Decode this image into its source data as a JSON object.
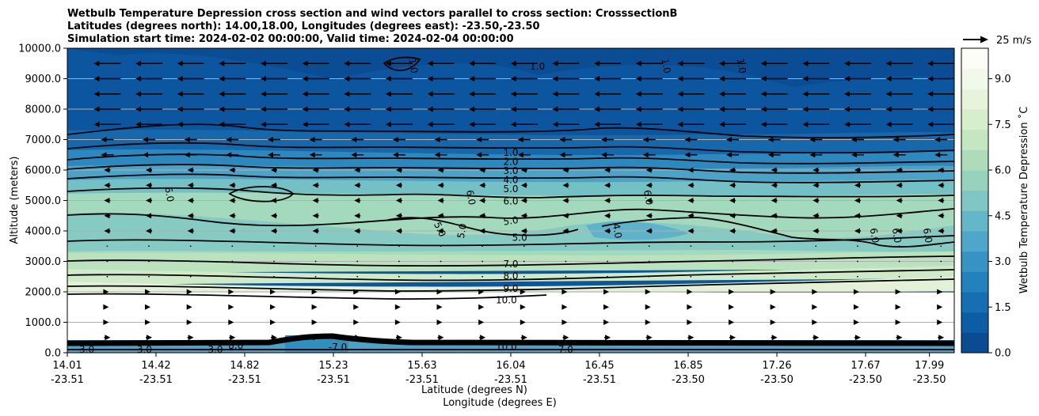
{
  "chart_data": {
    "type": "contourf",
    "title_lines": [
      "Wetbulb Temperature Depression cross section and wind vectors parallel to cross section: CrosssectionB",
      "Latitudes (degrees north): 14.00,18.00, Longitudes (degrees east): -23.50,-23.50",
      "Simulation start time: 2024-02-02 00:00:00, Valid time: 2024-02-04 00:00:00"
    ],
    "xlabel_lat": "Latitude (degrees N)",
    "xlabel_lon": "Longitude (degrees E)",
    "ylabel": "Altitude (meters)",
    "colorbar_label": "Wetbulb Temperature Depression ˚C",
    "quiver_key_label": "25 m/s",
    "xlim": [
      0,
      10
    ],
    "ylim": [
      0,
      10000
    ],
    "x_ticks": [
      {
        "pos": 0.0,
        "lat": "14.01",
        "lon": "-23.51"
      },
      {
        "pos": 1.0,
        "lat": "14.42",
        "lon": "-23.51"
      },
      {
        "pos": 2.0,
        "lat": "14.82",
        "lon": "-23.51"
      },
      {
        "pos": 3.0,
        "lat": "15.23",
        "lon": "-23.51"
      },
      {
        "pos": 4.0,
        "lat": "15.63",
        "lon": "-23.51"
      },
      {
        "pos": 5.0,
        "lat": "16.04",
        "lon": "-23.51"
      },
      {
        "pos": 6.0,
        "lat": "16.45",
        "lon": "-23.51"
      },
      {
        "pos": 7.0,
        "lat": "16.85",
        "lon": "-23.50"
      },
      {
        "pos": 8.0,
        "lat": "17.26",
        "lon": "-23.50"
      },
      {
        "pos": 9.0,
        "lat": "17.67",
        "lon": "-23.50"
      },
      {
        "pos": 9.72,
        "lat": "17.99",
        "lon": "-23.50"
      }
    ],
    "y_ticks": [
      "0.0",
      "1000.0",
      "2000.0",
      "3000.0",
      "4000.0",
      "5000.0",
      "6000.0",
      "7000.0",
      "8000.0",
      "9000.0",
      "10000.0"
    ],
    "y_tick_values": [
      0,
      1000,
      2000,
      3000,
      4000,
      5000,
      6000,
      7000,
      8000,
      9000,
      10000
    ],
    "colorbar_ticks": [
      "0.0",
      "1.5",
      "3.0",
      "4.5",
      "6.0",
      "7.5",
      "9.0"
    ],
    "colorbar_tick_values": [
      0,
      1.5,
      3,
      4.5,
      6,
      7.5,
      9
    ],
    "colorbar_range": [
      0,
      10
    ],
    "colorscale": [
      "#0a4c92",
      "#0c5da3",
      "#156fb1",
      "#2381bb",
      "#3793c4",
      "#4ea6c8",
      "#64b7c9",
      "#7ec7c4",
      "#97d3bc",
      "#aedcba",
      "#c4e6c0",
      "#d7eecd",
      "#e6f4dc",
      "#f1f9ea",
      "#fbfdf6"
    ],
    "contour_labels": [
      {
        "text": "1.0",
        "x": 5.0,
        "y": 6570,
        "rot": 0
      },
      {
        "text": "2.0",
        "x": 5.0,
        "y": 6270,
        "rot": 0
      },
      {
        "text": "3.0",
        "x": 5.0,
        "y": 5980,
        "rot": 0
      },
      {
        "text": "4.0",
        "x": 5.0,
        "y": 5680,
        "rot": 0
      },
      {
        "text": "5.0",
        "x": 5.0,
        "y": 5380,
        "rot": 0
      },
      {
        "text": "6.0",
        "x": 5.0,
        "y": 4980,
        "rot": 0
      },
      {
        "text": "5.0",
        "x": 5.0,
        "y": 4330,
        "rot": -8
      },
      {
        "text": "5.0",
        "x": 5.1,
        "y": 3780,
        "rot": 0
      },
      {
        "text": "7.0",
        "x": 5.0,
        "y": 2910,
        "rot": 0
      },
      {
        "text": "8.0",
        "x": 5.0,
        "y": 2520,
        "rot": 0
      },
      {
        "text": "9.0",
        "x": 5.0,
        "y": 2110,
        "rot": 0
      },
      {
        "text": "10.0",
        "x": 4.95,
        "y": 1730,
        "rot": 0
      },
      {
        "text": "1.0",
        "x": 5.3,
        "y": 9400,
        "rot": 0
      },
      {
        "text": "1.0",
        "x": 3.9,
        "y": 9420,
        "rot": 80
      },
      {
        "text": "1.0",
        "x": 6.75,
        "y": 9420,
        "rot": 80
      },
      {
        "text": "1.0",
        "x": 7.6,
        "y": 9420,
        "rot": 80
      },
      {
        "text": "6.0",
        "x": 1.15,
        "y": 5200,
        "rot": 80
      },
      {
        "text": "6.0",
        "x": 4.55,
        "y": 5100,
        "rot": 80
      },
      {
        "text": "6.0",
        "x": 6.55,
        "y": 5100,
        "rot": 80
      },
      {
        "text": "5.0",
        "x": 4.2,
        "y": 4050,
        "rot": 65
      },
      {
        "text": "5.0",
        "x": 4.45,
        "y": 4000,
        "rot": -80
      },
      {
        "text": "4.0",
        "x": 6.2,
        "y": 4000,
        "rot": 80
      },
      {
        "text": "6.0",
        "x": 9.1,
        "y": 3850,
        "rot": 80
      },
      {
        "text": "6.0",
        "x": 9.35,
        "y": 3850,
        "rot": 80
      },
      {
        "text": "6.0",
        "x": 9.7,
        "y": 3850,
        "rot": 80
      },
      {
        "text": "-3.0",
        "x": 0.2,
        "y": 100,
        "rot": 0
      },
      {
        "text": "-3.0",
        "x": 0.85,
        "y": 100,
        "rot": 0
      },
      {
        "text": "-3.0",
        "x": 1.65,
        "y": 100,
        "rot": 0
      },
      {
        "text": "8.0",
        "x": 1.9,
        "y": 230,
        "rot": 0
      },
      {
        "text": "-7.0",
        "x": 3.05,
        "y": 180,
        "rot": 0
      },
      {
        "text": "10.0",
        "x": 4.95,
        "y": 200,
        "rot": 0
      },
      {
        "text": "-7.0",
        "x": 5.6,
        "y": 100,
        "rot": 0
      }
    ]
  }
}
